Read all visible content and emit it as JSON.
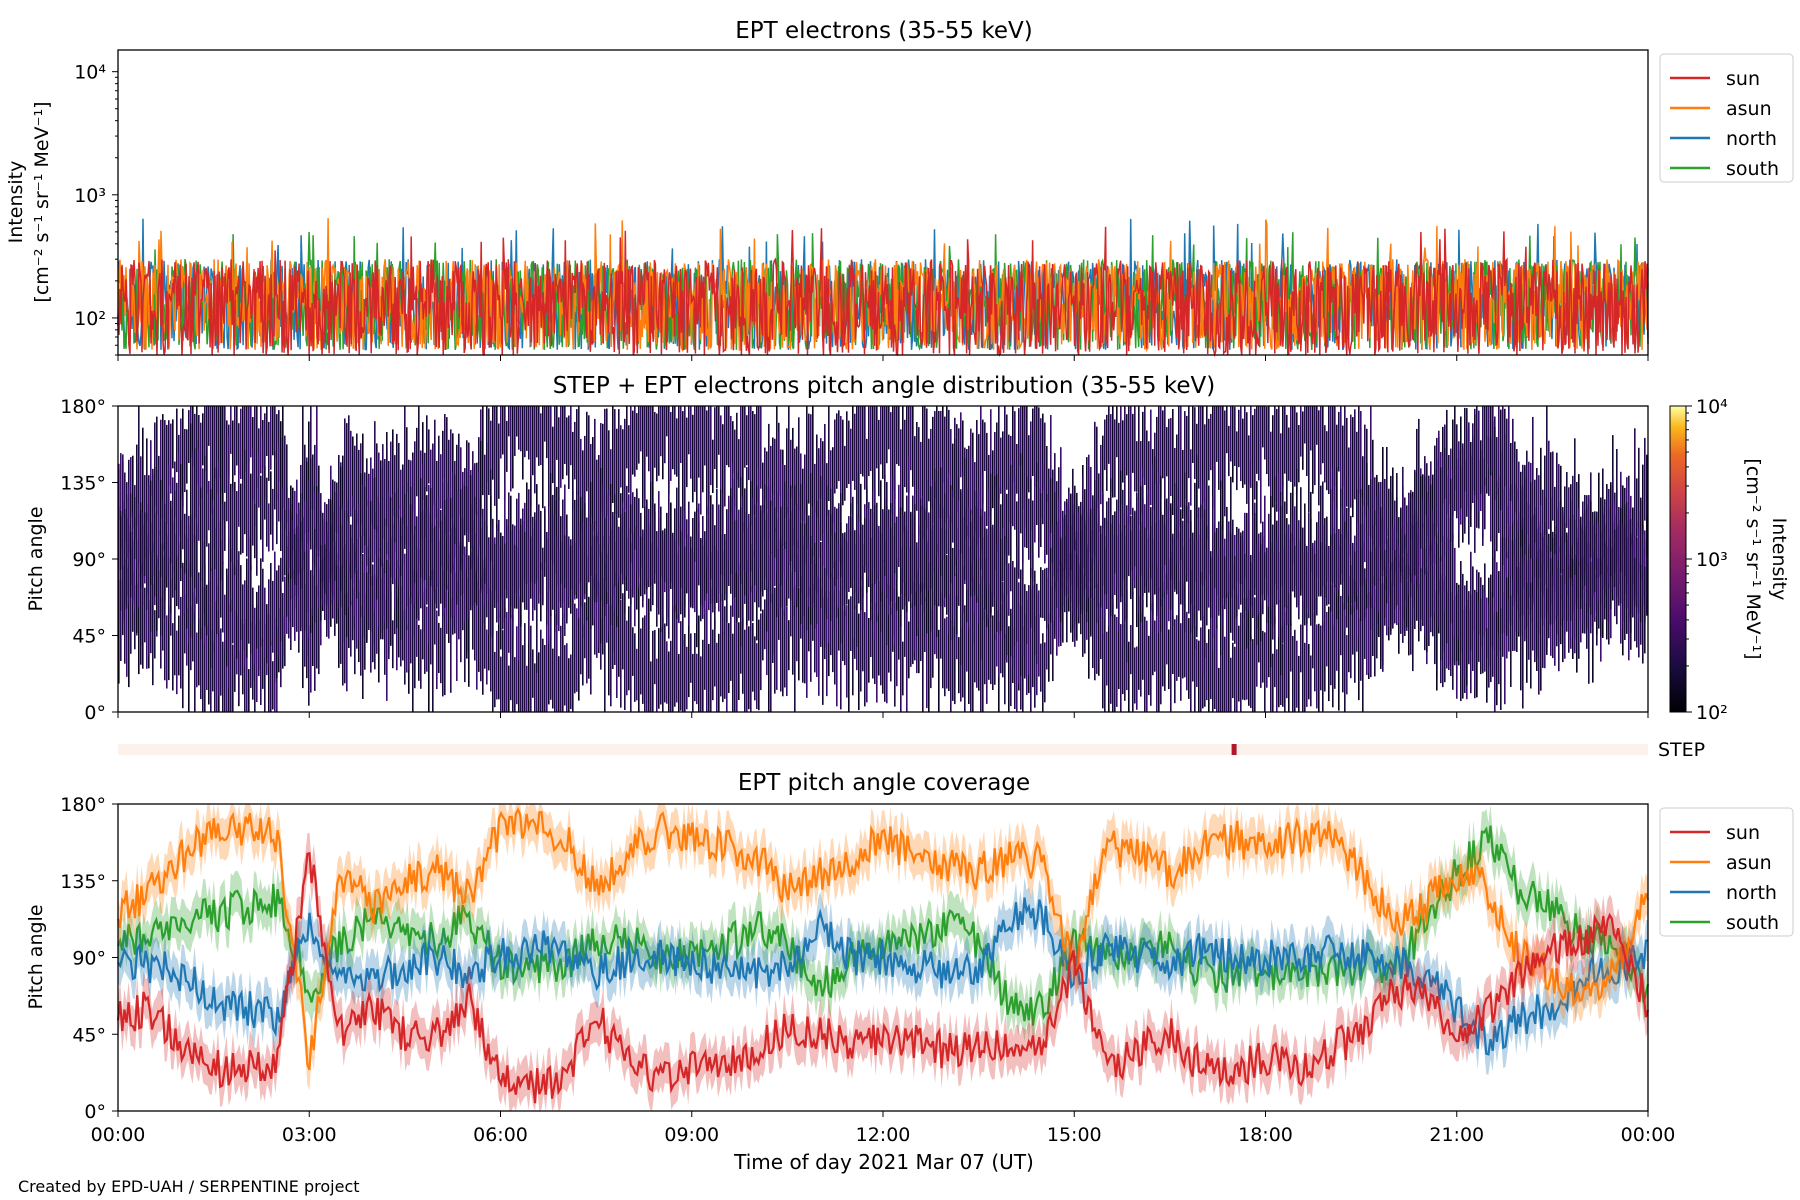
{
  "footer": "Created by EPD-UAH / SERPENTINE project",
  "xlabel": "Time of day 2021 Mar 07 (UT)",
  "time_ticks": [
    "00:00",
    "03:00",
    "06:00",
    "09:00",
    "12:00",
    "15:00",
    "18:00",
    "21:00",
    "00:00"
  ],
  "colors": {
    "sun": "#d62728",
    "asun": "#ff7f0e",
    "north": "#1f77b4",
    "south": "#2ca02c",
    "step": "#b2182b",
    "step_bg": "#fdf1ec"
  },
  "chart_data": [
    {
      "type": "line",
      "title": "EPT electrons (35-55 keV)",
      "ylabel": "Intensity",
      "yunit": "[cm⁻² s⁻¹ sr⁻¹ MeV⁻¹]",
      "yscale": "log",
      "ylim": [
        50,
        15000
      ],
      "yticks": [
        "10⁴",
        "10³",
        "10²"
      ],
      "ytick_values": [
        10000,
        1000,
        100
      ],
      "xlim_hours": [
        0,
        24
      ],
      "legend": "outside-right-top",
      "series": [
        {
          "name": "sun",
          "color": "#d62728",
          "typical_range": [
            50,
            300
          ],
          "peak": 560
        },
        {
          "name": "asun",
          "color": "#ff7f0e",
          "typical_range": [
            55,
            300
          ],
          "peak": 650
        },
        {
          "name": "north",
          "color": "#1f77b4",
          "typical_range": [
            55,
            300
          ],
          "peak": 640
        },
        {
          "name": "south",
          "color": "#2ca02c",
          "typical_range": [
            55,
            300
          ],
          "peak": 500
        }
      ]
    },
    {
      "type": "heatmap",
      "title": "STEP + EPT electrons pitch angle distribution (35-55 keV)",
      "ylabel": "Pitch angle",
      "ylim": [
        0,
        180
      ],
      "yticks": [
        "0°",
        "45°",
        "90°",
        "135°",
        "180°"
      ],
      "ytick_values": [
        0,
        45,
        90,
        135,
        180
      ],
      "xlim_hours": [
        0,
        24
      ],
      "colorbar": {
        "label": "Intensity",
        "unit": "[cm⁻² s⁻¹ sr⁻¹ MeV⁻¹]",
        "scale": "log",
        "range": [
          100,
          10000
        ],
        "ticks": [
          "10²",
          "10³",
          "10⁴"
        ]
      },
      "step_strip": {
        "label": "STEP",
        "mark_hour": 17.5
      }
    },
    {
      "type": "line",
      "title": "EPT pitch angle coverage",
      "ylabel": "Pitch angle",
      "ylim": [
        0,
        180
      ],
      "yticks": [
        "0°",
        "45°",
        "90°",
        "135°",
        "180°"
      ],
      "ytick_values": [
        0,
        45,
        90,
        135,
        180
      ],
      "xlim_hours": [
        0,
        24
      ],
      "legend": "outside-right-top",
      "band_halfwidth_deg": 12,
      "x_hours": [
        0,
        0.5,
        1,
        1.5,
        2,
        2.5,
        3,
        3.5,
        4,
        4.5,
        5,
        5.5,
        6,
        6.5,
        7,
        7.5,
        8,
        8.5,
        9,
        9.5,
        10,
        10.5,
        11,
        11.5,
        12,
        12.5,
        13,
        13.5,
        14,
        14.5,
        15,
        15.5,
        16,
        16.5,
        17,
        17.5,
        18,
        18.5,
        19,
        19.5,
        20,
        20.5,
        21,
        21.5,
        22,
        22.5,
        23,
        23.5,
        24
      ],
      "series": [
        {
          "name": "sun",
          "color": "#d62728",
          "values": [
            55,
            60,
            40,
            25,
            25,
            30,
            150,
            45,
            60,
            45,
            45,
            65,
            20,
            15,
            20,
            55,
            30,
            20,
            25,
            25,
            35,
            50,
            45,
            40,
            40,
            40,
            35,
            40,
            35,
            35,
            85,
            25,
            35,
            45,
            25,
            25,
            30,
            25,
            35,
            45,
            70,
            70,
            45,
            60,
            80,
            95,
            100,
            110,
            60
          ]
        },
        {
          "name": "asun",
          "color": "#ff7f0e",
          "values": [
            115,
            130,
            150,
            165,
            165,
            160,
            30,
            140,
            120,
            135,
            140,
            125,
            165,
            170,
            160,
            130,
            150,
            165,
            160,
            155,
            150,
            130,
            140,
            145,
            160,
            150,
            145,
            140,
            150,
            145,
            85,
            155,
            150,
            140,
            155,
            160,
            155,
            160,
            160,
            140,
            110,
            120,
            140,
            130,
            90,
            80,
            70,
            80,
            130
          ]
        },
        {
          "name": "north",
          "color": "#1f77b4",
          "values": [
            90,
            85,
            80,
            65,
            60,
            55,
            110,
            75,
            75,
            85,
            90,
            80,
            90,
            95,
            95,
            80,
            90,
            90,
            85,
            85,
            80,
            85,
            110,
            90,
            90,
            85,
            80,
            85,
            115,
            115,
            80,
            95,
            90,
            85,
            95,
            90,
            90,
            90,
            95,
            90,
            90,
            80,
            60,
            40,
            55,
            60,
            80,
            85,
            90
          ]
        },
        {
          "name": "south",
          "color": "#2ca02c",
          "values": [
            100,
            100,
            110,
            115,
            120,
            125,
            70,
            100,
            115,
            100,
            100,
            115,
            85,
            85,
            85,
            100,
            100,
            90,
            90,
            95,
            110,
            100,
            70,
            90,
            95,
            100,
            110,
            100,
            60,
            60,
            100,
            90,
            90,
            100,
            80,
            80,
            80,
            85,
            80,
            85,
            80,
            110,
            140,
            160,
            130,
            120,
            100,
            95,
            70
          ]
        }
      ]
    }
  ]
}
